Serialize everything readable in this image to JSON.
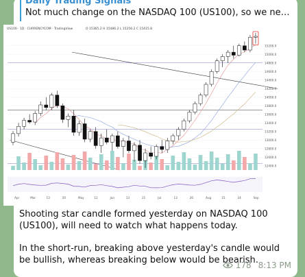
{
  "reply": {
    "title": "Daily Trading Signals",
    "text": "Not much change on the NASDAQ 100 (US100), so we need to ex..."
  },
  "chart_header": {
    "symbol": "US100 · 1D · CURRENCYCOM · TradingView",
    "ohlc": "O 15365.2  H 15486.2  L 15256.2  C 15415.8"
  },
  "chart_data": {
    "type": "candlestick",
    "x_ticks": [
      "Apr",
      "Mar",
      "13",
      "20",
      "May",
      "11",
      "Jun",
      "13",
      "21",
      "Jul",
      "13",
      "20",
      "Aug",
      "15",
      "24",
      "Sep"
    ],
    "price_labels": [
      "15200.0",
      "15000.0",
      "14800.0",
      "14600.0",
      "14400.0",
      "14200.0",
      "14000.0",
      "13800.0",
      "13600.0",
      "13400.0",
      "13200.0",
      "13000.0",
      "12800.0",
      "12600.0",
      "12400.0"
    ],
    "ylim": [
      12300,
      15500
    ],
    "candles": [
      {
        "o": 12950,
        "h": 13210,
        "l": 12880,
        "c": 13150
      },
      {
        "o": 13150,
        "h": 13400,
        "l": 13080,
        "c": 13320
      },
      {
        "o": 13320,
        "h": 13520,
        "l": 13250,
        "c": 13460
      },
      {
        "o": 13460,
        "h": 13600,
        "l": 13380,
        "c": 13420
      },
      {
        "o": 13420,
        "h": 13680,
        "l": 13350,
        "c": 13620
      },
      {
        "o": 13620,
        "h": 13900,
        "l": 13560,
        "c": 13820
      },
      {
        "o": 13820,
        "h": 14000,
        "l": 13700,
        "c": 13760
      },
      {
        "o": 13760,
        "h": 14100,
        "l": 13700,
        "c": 14050
      },
      {
        "o": 14050,
        "h": 14150,
        "l": 13750,
        "c": 13800
      },
      {
        "o": 13800,
        "h": 13850,
        "l": 13400,
        "c": 13480
      },
      {
        "o": 13480,
        "h": 13620,
        "l": 13300,
        "c": 13560
      },
      {
        "o": 13560,
        "h": 13700,
        "l": 13100,
        "c": 13180
      },
      {
        "o": 13180,
        "h": 13450,
        "l": 13100,
        "c": 13380
      },
      {
        "o": 13380,
        "h": 13500,
        "l": 12950,
        "c": 13020
      },
      {
        "o": 13020,
        "h": 13250,
        "l": 12950,
        "c": 13200
      },
      {
        "o": 13200,
        "h": 13300,
        "l": 12800,
        "c": 12870
      },
      {
        "o": 12870,
        "h": 13150,
        "l": 12700,
        "c": 13050
      },
      {
        "o": 13050,
        "h": 13250,
        "l": 12900,
        "c": 12950
      },
      {
        "o": 12950,
        "h": 13150,
        "l": 12750,
        "c": 13100
      },
      {
        "o": 13100,
        "h": 13200,
        "l": 12800,
        "c": 12850
      },
      {
        "o": 12850,
        "h": 13050,
        "l": 12600,
        "c": 12980
      },
      {
        "o": 12980,
        "h": 13100,
        "l": 12700,
        "c": 12750
      },
      {
        "o": 12750,
        "h": 12950,
        "l": 12500,
        "c": 12880
      },
      {
        "o": 12880,
        "h": 13000,
        "l": 12450,
        "c": 12520
      },
      {
        "o": 12520,
        "h": 12800,
        "l": 12350,
        "c": 12700
      },
      {
        "o": 12700,
        "h": 12850,
        "l": 12550,
        "c": 12620
      },
      {
        "o": 12620,
        "h": 12900,
        "l": 12550,
        "c": 12850
      },
      {
        "o": 12850,
        "h": 13000,
        "l": 12700,
        "c": 12780
      },
      {
        "o": 12780,
        "h": 13050,
        "l": 12700,
        "c": 12980
      },
      {
        "o": 12980,
        "h": 13150,
        "l": 12900,
        "c": 13100
      },
      {
        "o": 13100,
        "h": 13300,
        "l": 13000,
        "c": 13250
      },
      {
        "o": 13250,
        "h": 13500,
        "l": 13200,
        "c": 13450
      },
      {
        "o": 13450,
        "h": 13700,
        "l": 13400,
        "c": 13650
      },
      {
        "o": 13650,
        "h": 13900,
        "l": 13600,
        "c": 13850
      },
      {
        "o": 13850,
        "h": 14100,
        "l": 13800,
        "c": 14050
      },
      {
        "o": 14050,
        "h": 14350,
        "l": 14000,
        "c": 14300
      },
      {
        "o": 14300,
        "h": 14650,
        "l": 14250,
        "c": 14600
      },
      {
        "o": 14600,
        "h": 14900,
        "l": 14550,
        "c": 14850
      },
      {
        "o": 14850,
        "h": 15000,
        "l": 14700,
        "c": 14950
      },
      {
        "o": 14950,
        "h": 15100,
        "l": 14800,
        "c": 15050
      },
      {
        "o": 15050,
        "h": 15200,
        "l": 14900,
        "c": 14980
      },
      {
        "o": 14980,
        "h": 15250,
        "l": 14950,
        "c": 15200
      },
      {
        "o": 15200,
        "h": 15300,
        "l": 15050,
        "c": 15100
      },
      {
        "o": 15100,
        "h": 15450,
        "l": 15050,
        "c": 15400
      },
      {
        "o": 15400,
        "h": 15500,
        "l": 15250,
        "c": 15420
      }
    ],
    "grid": true,
    "legend": "none"
  },
  "caption": {
    "p1": "Shooting star candle formed yesterday on NASDAQ 100 (US100), will need to watch what happens today.",
    "p2": "In the short-run, breaking above yesterday's candle would be bullish, whereas breaking below would be bearish."
  },
  "meta": {
    "views": "178",
    "time": "8:13 PM"
  },
  "colors": {
    "up": "#26a69a",
    "down": "#111111",
    "bg_page": "#8fb98c",
    "accent": "#3a8fd0"
  }
}
